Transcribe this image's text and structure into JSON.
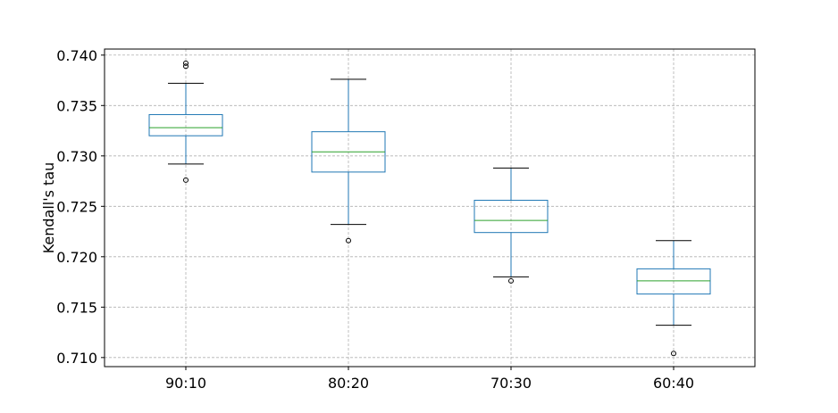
{
  "chart_data": {
    "type": "box",
    "title": "",
    "xlabel": "",
    "ylabel": "Kendall's tau",
    "ylim": [
      0.7091,
      0.7406
    ],
    "grid": true,
    "colors": {
      "box": "#1f77b4",
      "median": "#2ca02c",
      "whisker": "#000000",
      "grid": "#b0b0b0"
    },
    "categories": [
      "90:10",
      "80:20",
      "70:30",
      "60:40"
    ],
    "yticks": [
      "0.710",
      "0.715",
      "0.720",
      "0.725",
      "0.730",
      "0.735",
      "0.740"
    ],
    "boxes": [
      {
        "category": "90:10",
        "whisker_low": 0.7292,
        "q1": 0.732,
        "median": 0.7328,
        "q3": 0.7341,
        "whisker_high": 0.7372,
        "outliers": [
          0.7276,
          0.7389,
          0.7392
        ]
      },
      {
        "category": "80:20",
        "whisker_low": 0.7232,
        "q1": 0.7284,
        "median": 0.7304,
        "q3": 0.7324,
        "whisker_high": 0.7376,
        "outliers": [
          0.7216
        ]
      },
      {
        "category": "70:30",
        "whisker_low": 0.718,
        "q1": 0.7224,
        "median": 0.7236,
        "q3": 0.7256,
        "whisker_high": 0.7288,
        "outliers": [
          0.7176
        ]
      },
      {
        "category": "60:40",
        "whisker_low": 0.7132,
        "q1": 0.7163,
        "median": 0.7176,
        "q3": 0.7188,
        "whisker_high": 0.7216,
        "outliers": [
          0.7104
        ]
      }
    ]
  }
}
